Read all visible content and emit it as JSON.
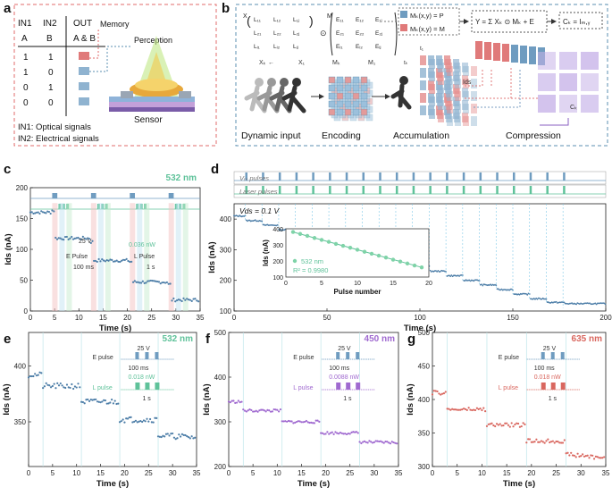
{
  "panels": {
    "a": {
      "label": "a",
      "table": {
        "headers": [
          "IN1",
          "IN2",
          "OUT"
        ],
        "subheaders": [
          "A",
          "B",
          "A & B"
        ],
        "rows": [
          [
            "1",
            "1"
          ],
          [
            "1",
            "0"
          ],
          [
            "0",
            "1"
          ],
          [
            "0",
            "0"
          ]
        ]
      },
      "memory_label": "Memory",
      "perception_label": "Perception",
      "sensor_label": "Sensor",
      "notes": [
        "IN1: Optical signals",
        "IN2: Electrical signals"
      ]
    },
    "b": {
      "label": "b",
      "matrix_x": {
        "symbol": "X",
        "entries": [
          [
            "L₁₁",
            "L₁₂",
            "L₁ⱼ"
          ],
          [
            "L₂₁",
            "L₂₂",
            "L₂ⱼ"
          ],
          [
            "Lᵢ₁",
            "Lᵢ₂",
            "Lᵢⱼ"
          ]
        ]
      },
      "matrix_m": {
        "symbol": "M",
        "entries": [
          [
            "E₁₁",
            "E₁₂",
            "E₁ⱼ"
          ],
          [
            "E₂₁",
            "E₂₂",
            "E₂ⱼ"
          ],
          [
            "Eᵢ₁",
            "Eᵢ₂",
            "Eᵢⱼ"
          ]
        ]
      },
      "operator": "⊙",
      "xk_label": "Xₖ",
      "x1_label": "X₁",
      "mk_label": "Mₖ",
      "m1_label": "M₁",
      "legend": [
        "Mₖ(x,y) = P",
        "Mₖ(x,y) = M"
      ],
      "equation_y": "Y = Σ Xₖ ⊙ Mₖ + E",
      "equation_c": "Cₖ = Iₘ,ᵧ",
      "t1_label": "t₁",
      "tk_label": "tₖ",
      "ids_label": "Ids",
      "ck_label": "Cₖ",
      "stages": [
        "Dynamic input",
        "Encoding",
        "Accumulation",
        "Compression"
      ]
    },
    "c": {
      "label": "c"
    },
    "d": {
      "label": "d"
    },
    "e": {
      "label": "e"
    },
    "f": {
      "label": "f"
    },
    "g": {
      "label": "g"
    }
  },
  "chart_data": [
    {
      "id": "c",
      "type": "line",
      "title": "532 nm",
      "xlabel": "Time (s)",
      "ylabel": "Ids (nA)",
      "xlim": [
        0,
        35
      ],
      "ylim": [
        0,
        200
      ],
      "xticks": [
        0,
        5,
        10,
        15,
        20,
        25,
        30,
        35
      ],
      "yticks": [
        0,
        50,
        100,
        150,
        200
      ],
      "e_pulse": {
        "label": "E Pulse",
        "voltage": "25 V",
        "width": "100 ms"
      },
      "l_pulse": {
        "label": "L Pulse",
        "power": "0.036 nW",
        "period": "1 s"
      },
      "e_pulse_times": [
        4.5,
        5.0,
        12.5,
        13.0,
        20.5,
        21.0,
        28.5,
        29.0
      ],
      "l_pulse_times": [
        5.8,
        6.6,
        7.4,
        13.8,
        14.6,
        15.4,
        21.8,
        22.6,
        23.4,
        29.8,
        30.6,
        31.4
      ],
      "steps": [
        [
          0,
          160
        ],
        [
          4.5,
          163
        ],
        [
          5.2,
          118
        ],
        [
          12.5,
          112
        ],
        [
          13.1,
          82
        ],
        [
          20.5,
          80
        ],
        [
          21.2,
          47
        ],
        [
          28.5,
          43
        ],
        [
          29.2,
          18
        ],
        [
          35,
          18
        ]
      ]
    },
    {
      "id": "d",
      "type": "line",
      "xlabel": "Time (s)",
      "ylabel": "Ids (nA)",
      "xlim": [
        0,
        200
      ],
      "ylim": [
        100,
        450
      ],
      "xticks": [
        0,
        50,
        100,
        150,
        200
      ],
      "yticks": [
        100,
        200,
        300,
        400
      ],
      "vds_label": "Vds = 0.1 V",
      "pulse_rows": [
        "Vᵣₛ pulses",
        "Laser pulses"
      ],
      "pulse_times": [
        6,
        15,
        24,
        33,
        42,
        51,
        60,
        69,
        78,
        87,
        96,
        105,
        114,
        123,
        132,
        141,
        150,
        159,
        168,
        177
      ],
      "inset": {
        "type": "scatter",
        "xlabel": "Pulse number",
        "ylabel": "Ids (nA)",
        "legend": "532 nm",
        "r2": "R² = 0.9980",
        "xlim": [
          0,
          20
        ],
        "ylim": [
          100,
          400
        ],
        "xticks": [
          0,
          5,
          10,
          15,
          20
        ],
        "yticks": [
          100,
          200,
          300,
          400
        ],
        "x": [
          1,
          2,
          3,
          4,
          5,
          6,
          7,
          8,
          9,
          10,
          11,
          12,
          13,
          14,
          15,
          16,
          17,
          18,
          19
        ],
        "y": [
          380,
          368,
          356,
          343,
          331,
          319,
          306,
          294,
          282,
          270,
          257,
          245,
          233,
          221,
          208,
          196,
          184,
          172,
          160
        ]
      }
    },
    {
      "id": "e",
      "type": "line",
      "title": "532 nm",
      "xlabel": "Time (s)",
      "ylabel": "Ids (nA)",
      "xlim": [
        0,
        35
      ],
      "ylim": [
        310,
        430
      ],
      "xticks": [
        0,
        5,
        10,
        15,
        20,
        25,
        30,
        35
      ],
      "yticks": [
        350,
        400
      ],
      "e_pulse": {
        "label": "E pulse",
        "voltage": "25 V",
        "width": "100 ms"
      },
      "l_pulse": {
        "label": "L pulse",
        "power": "0.018 nW",
        "period": "1 s"
      },
      "event_times": [
        3,
        11,
        19,
        27
      ],
      "steps": [
        [
          0,
          392
        ],
        [
          3,
          382
        ],
        [
          11,
          368
        ],
        [
          19,
          352
        ],
        [
          27,
          338
        ],
        [
          35,
          336
        ]
      ]
    },
    {
      "id": "f",
      "type": "line",
      "title": "450 nm",
      "xlabel": "Time (s)",
      "ylabel": "Ids (nA)",
      "xlim": [
        0,
        35
      ],
      "ylim": [
        200,
        500
      ],
      "xticks": [
        0,
        5,
        10,
        15,
        20,
        25,
        30,
        35
      ],
      "yticks": [
        200,
        300,
        400,
        500
      ],
      "e_pulse": {
        "label": "E pulse",
        "voltage": "25 V",
        "width": "100 ms"
      },
      "l_pulse": {
        "label": "L pulse",
        "power": "0.0088 nW",
        "period": "1 s"
      },
      "event_times": [
        3,
        11,
        19,
        27
      ],
      "steps": [
        [
          0,
          345
        ],
        [
          3,
          325
        ],
        [
          11,
          300
        ],
        [
          19,
          275
        ],
        [
          27,
          255
        ],
        [
          35,
          253
        ]
      ]
    },
    {
      "id": "g",
      "type": "line",
      "title": "635 nm",
      "xlabel": "Time (s)",
      "ylabel": "Ids (nA)",
      "xlim": [
        0,
        35
      ],
      "ylim": [
        300,
        500
      ],
      "xticks": [
        0,
        5,
        10,
        15,
        20,
        25,
        30,
        35
      ],
      "yticks": [
        300,
        350,
        400,
        450,
        500
      ],
      "e_pulse": {
        "label": "E pulse",
        "voltage": "25 V",
        "width": "100 ms"
      },
      "l_pulse": {
        "label": "L pulse",
        "power": "0.018 nW",
        "period": "1 s"
      },
      "event_times": [
        3,
        11,
        19,
        27
      ],
      "steps": [
        [
          0,
          410
        ],
        [
          3,
          385
        ],
        [
          11,
          362
        ],
        [
          19,
          338
        ],
        [
          27,
          318
        ],
        [
          35,
          313
        ]
      ]
    }
  ]
}
